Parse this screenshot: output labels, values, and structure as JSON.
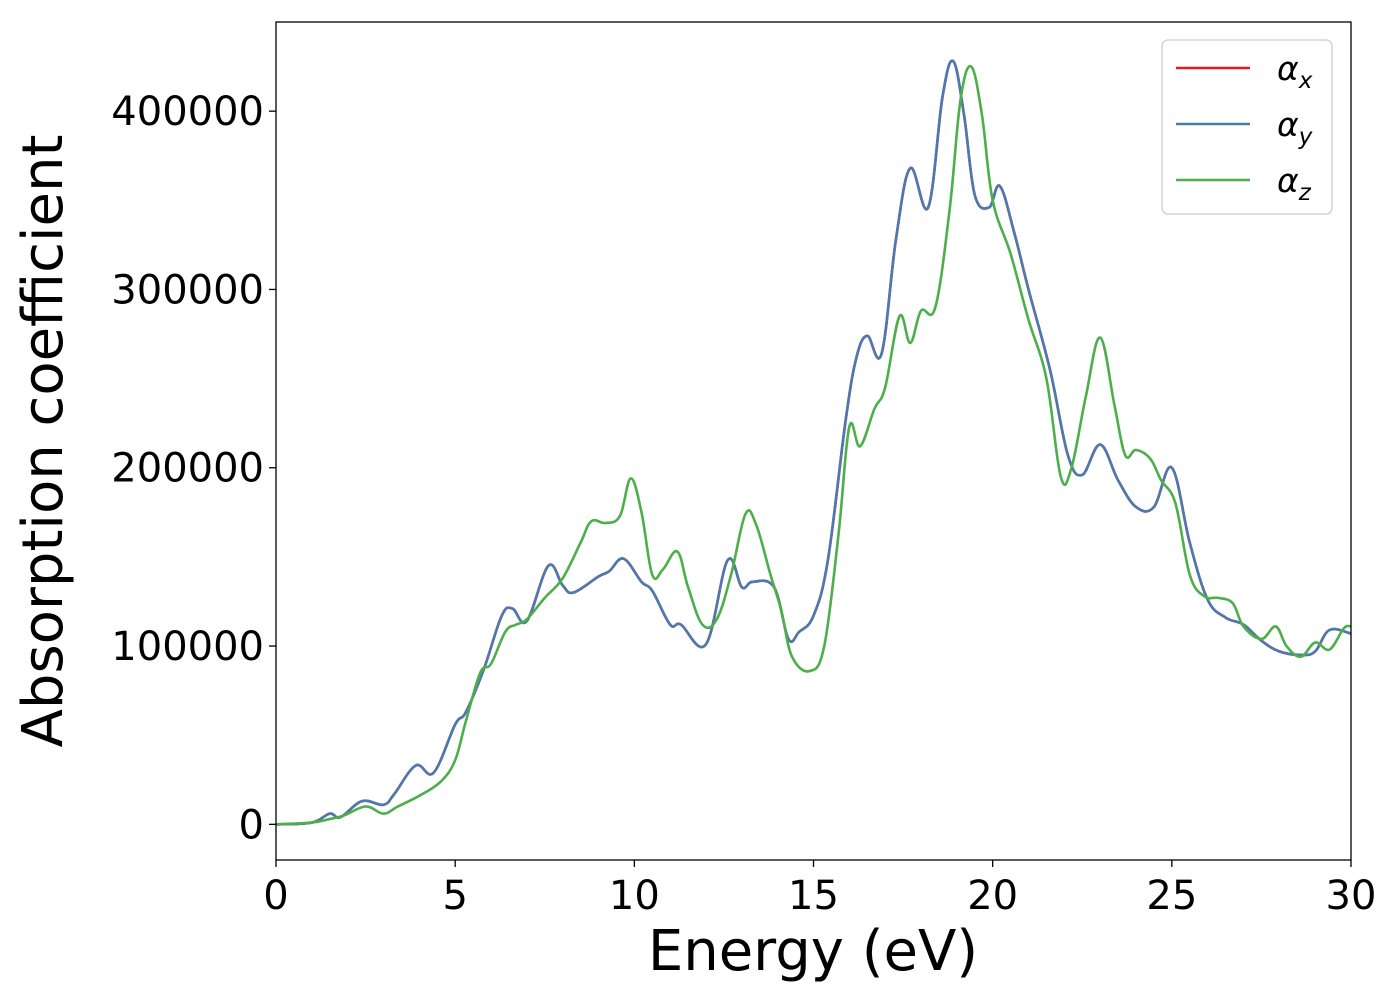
{
  "chart_data": {
    "type": "line",
    "title": "",
    "xlabel": "Energy (eV)",
    "ylabel": "Absorption coefficient",
    "xlim": [
      0,
      30
    ],
    "ylim": [
      -20000,
      450000
    ],
    "xticks": [
      0,
      5,
      10,
      15,
      20,
      25,
      30
    ],
    "xtick_labels": [
      "0",
      "5",
      "10",
      "15",
      "20",
      "25",
      "30"
    ],
    "yticks": [
      0,
      100000,
      200000,
      300000,
      400000
    ],
    "ytick_labels": [
      "0",
      "100000",
      "200000",
      "300000",
      "400000"
    ],
    "grid": false,
    "legend_position": "top-right",
    "series": [
      {
        "name": "αx",
        "symbol": "α",
        "subscript": "x",
        "color": "#e41a1c",
        "x": [
          0,
          1.0,
          1.5,
          1.8,
          2.4,
          3.0,
          3.3,
          3.9,
          4.4,
          5.0,
          5.3,
          5.8,
          6.3,
          6.6,
          7.0,
          7.6,
          8.0,
          8.3,
          9.0,
          9.3,
          9.7,
          10.2,
          10.5,
          11.0,
          11.3,
          12.0,
          12.6,
          13.0,
          13.3,
          13.9,
          14.3,
          14.6,
          15.0,
          15.4,
          15.9,
          16.2,
          16.5,
          16.9,
          17.3,
          17.7,
          18.2,
          18.6,
          18.9,
          19.2,
          19.5,
          19.9,
          20.2,
          20.6,
          21.0,
          21.6,
          22.1,
          22.5,
          23.0,
          23.5,
          24.0,
          24.5,
          25.0,
          25.5,
          26.0,
          26.5,
          27.0,
          27.5,
          28.0,
          28.6,
          29.0,
          29.4,
          30.0
        ],
        "values": [
          0,
          1000,
          6000,
          4000,
          13000,
          11000,
          17000,
          33000,
          29000,
          56000,
          63000,
          87000,
          117000,
          121000,
          114000,
          145000,
          134000,
          130000,
          139000,
          142000,
          149000,
          136000,
          131000,
          112000,
          112000,
          101000,
          148000,
          133000,
          136000,
          133000,
          104000,
          108000,
          117000,
          148000,
          227000,
          262000,
          274000,
          264000,
          328000,
          368000,
          346000,
          408000,
          428000,
          398000,
          353000,
          346000,
          358000,
          332000,
          300000,
          255000,
          207000,
          196000,
          213000,
          193000,
          178000,
          178000,
          200000,
          158000,
          126000,
          116000,
          112000,
          103000,
          97000,
          95000,
          97000,
          109000,
          107000
        ]
      },
      {
        "name": "αy",
        "symbol": "α",
        "subscript": "y",
        "color": "#4a7ab0",
        "x": [
          0,
          1.0,
          1.5,
          1.8,
          2.4,
          3.0,
          3.3,
          3.9,
          4.4,
          5.0,
          5.3,
          5.8,
          6.3,
          6.6,
          7.0,
          7.6,
          8.0,
          8.3,
          9.0,
          9.3,
          9.7,
          10.2,
          10.5,
          11.0,
          11.3,
          12.0,
          12.6,
          13.0,
          13.3,
          13.9,
          14.3,
          14.6,
          15.0,
          15.4,
          15.9,
          16.2,
          16.5,
          16.9,
          17.3,
          17.7,
          18.2,
          18.6,
          18.9,
          19.2,
          19.5,
          19.9,
          20.2,
          20.6,
          21.0,
          21.6,
          22.1,
          22.5,
          23.0,
          23.5,
          24.0,
          24.5,
          25.0,
          25.5,
          26.0,
          26.5,
          27.0,
          27.5,
          28.0,
          28.6,
          29.0,
          29.4,
          30.0
        ],
        "values": [
          0,
          1000,
          6000,
          4000,
          13000,
          11000,
          17000,
          33000,
          29000,
          56000,
          63000,
          87000,
          117000,
          121000,
          114000,
          145000,
          134000,
          130000,
          139000,
          142000,
          149000,
          136000,
          131000,
          112000,
          112000,
          101000,
          148000,
          133000,
          136000,
          133000,
          104000,
          108000,
          117000,
          148000,
          227000,
          262000,
          274000,
          264000,
          328000,
          368000,
          346000,
          408000,
          428000,
          398000,
          353000,
          346000,
          358000,
          332000,
          300000,
          255000,
          207000,
          196000,
          213000,
          193000,
          178000,
          178000,
          200000,
          158000,
          126000,
          116000,
          112000,
          103000,
          97000,
          95000,
          97000,
          109000,
          107000
        ]
      },
      {
        "name": "αz",
        "symbol": "α",
        "subscript": "z",
        "color": "#4daf4a",
        "x": [
          0,
          1.0,
          1.5,
          1.9,
          2.5,
          3.0,
          3.4,
          4.0,
          4.6,
          5.0,
          5.3,
          5.7,
          6.0,
          6.4,
          6.7,
          7.0,
          7.5,
          8.0,
          8.5,
          8.8,
          9.2,
          9.6,
          9.9,
          10.2,
          10.5,
          10.8,
          11.2,
          11.5,
          11.9,
          12.3,
          12.7,
          13.1,
          13.4,
          13.8,
          14.1,
          14.4,
          14.9,
          15.3,
          15.7,
          16.0,
          16.3,
          16.7,
          17.0,
          17.4,
          17.7,
          18.0,
          18.4,
          18.8,
          19.1,
          19.4,
          19.7,
          20.0,
          20.5,
          21.0,
          21.5,
          21.9,
          22.2,
          22.6,
          23.0,
          23.4,
          23.7,
          24.0,
          24.4,
          24.7,
          25.1,
          25.5,
          25.9,
          26.3,
          26.7,
          27.0,
          27.5,
          27.9,
          28.2,
          28.6,
          29.0,
          29.4,
          29.8,
          30.0
        ],
        "values": [
          0,
          1000,
          3000,
          5000,
          10000,
          6000,
          10000,
          16000,
          24000,
          36000,
          58000,
          85000,
          90000,
          108000,
          112000,
          115000,
          127000,
          138000,
          158000,
          170000,
          169000,
          173000,
          194000,
          175000,
          140000,
          143000,
          153000,
          133000,
          112000,
          115000,
          140000,
          174000,
          168000,
          140000,
          120000,
          94000,
          86000,
          100000,
          163000,
          223000,
          212000,
          233000,
          245000,
          285000,
          270000,
          288000,
          290000,
          345000,
          406000,
          425000,
          398000,
          350000,
          320000,
          283000,
          250000,
          195000,
          200000,
          240000,
          273000,
          235000,
          207000,
          210000,
          205000,
          193000,
          180000,
          140000,
          128000,
          127000,
          124000,
          111000,
          104000,
          111000,
          100000,
          94000,
          102000,
          98000,
          110000,
          111000
        ]
      }
    ]
  }
}
